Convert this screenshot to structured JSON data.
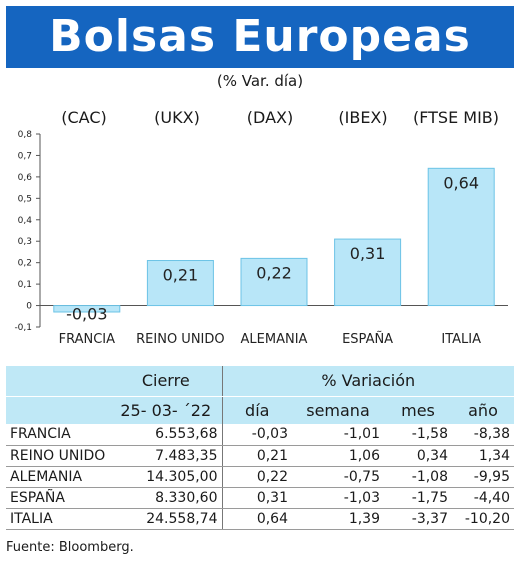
{
  "header": {
    "title": "Bolsas Europeas",
    "subtitle": "(% Var. día)"
  },
  "tickers": [
    "(CAC)",
    "(UKX)",
    "(DAX)",
    "(IBEX)",
    "(FTSE MIB)"
  ],
  "chart_data": {
    "type": "bar",
    "categories": [
      "FRANCIA",
      "REINO UNIDO",
      "ALEMANIA",
      "ESPAÑA",
      "ITALIA"
    ],
    "values": [
      -0.03,
      0.21,
      0.22,
      0.31,
      0.64
    ],
    "value_labels": [
      "-0,03",
      "0,21",
      "0,22",
      "0,31",
      "0,64"
    ],
    "ylim": [
      -0.1,
      0.8
    ],
    "yticks": [
      "-0,1",
      "0",
      "0,1",
      "0,2",
      "0,3",
      "0,4",
      "0,5",
      "0,6",
      "0,7",
      "0,8"
    ],
    "bar_color": "#b8e6f8",
    "bar_stroke": "#6cc3e6"
  },
  "table": {
    "group_headers": {
      "cierre": "Cierre",
      "variacion": "% Variación"
    },
    "sub_headers": {
      "date": "25- 03- ´22",
      "dia": "día",
      "semana": "semana",
      "mes": "mes",
      "anio": "año"
    },
    "rows": [
      {
        "name": "FRANCIA",
        "cierre": "6.553,68",
        "dia": "-0,03",
        "semana": "-1,01",
        "mes": "-1,58",
        "anio": "-8,38"
      },
      {
        "name": "REINO UNIDO",
        "cierre": "7.483,35",
        "dia": "0,21",
        "semana": "1,06",
        "mes": "0,34",
        "anio": "1,34"
      },
      {
        "name": "ALEMANIA",
        "cierre": "14.305,00",
        "dia": "0,22",
        "semana": "-0,75",
        "mes": "-1,08",
        "anio": "-9,95"
      },
      {
        "name": "ESPAÑA",
        "cierre": "8.330,60",
        "dia": "0,31",
        "semana": "-1,03",
        "mes": "-1,75",
        "anio": "-4,40"
      },
      {
        "name": "ITALIA",
        "cierre": "24.558,74",
        "dia": "0,64",
        "semana": "1,39",
        "mes": "-3,37",
        "anio": "-10,20"
      }
    ]
  },
  "footer": {
    "source": "Fuente: Bloomberg."
  },
  "colors": {
    "title_bg": "#1565c0",
    "header_bg": "#bfe8f6"
  }
}
